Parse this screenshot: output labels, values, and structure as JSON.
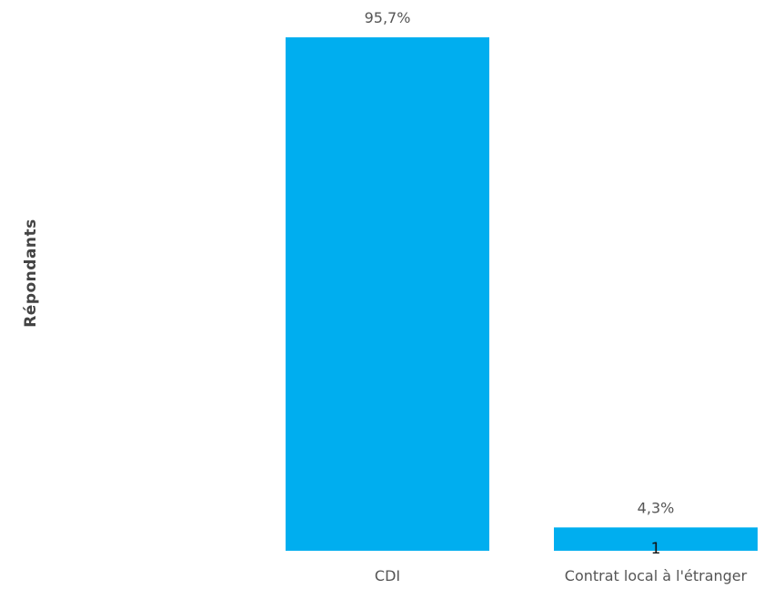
{
  "chart_data": {
    "type": "bar",
    "ylabel": "Répondants",
    "xlabel": "",
    "categories": [
      "CDI",
      "Contrat local à l'étranger"
    ],
    "values": [
      22,
      1
    ],
    "percent_labels": [
      "95,7%",
      "4,3%"
    ],
    "count_labels": [
      "",
      "1"
    ],
    "bar_color": "#00AEEF",
    "grid": false,
    "legend": "none"
  }
}
